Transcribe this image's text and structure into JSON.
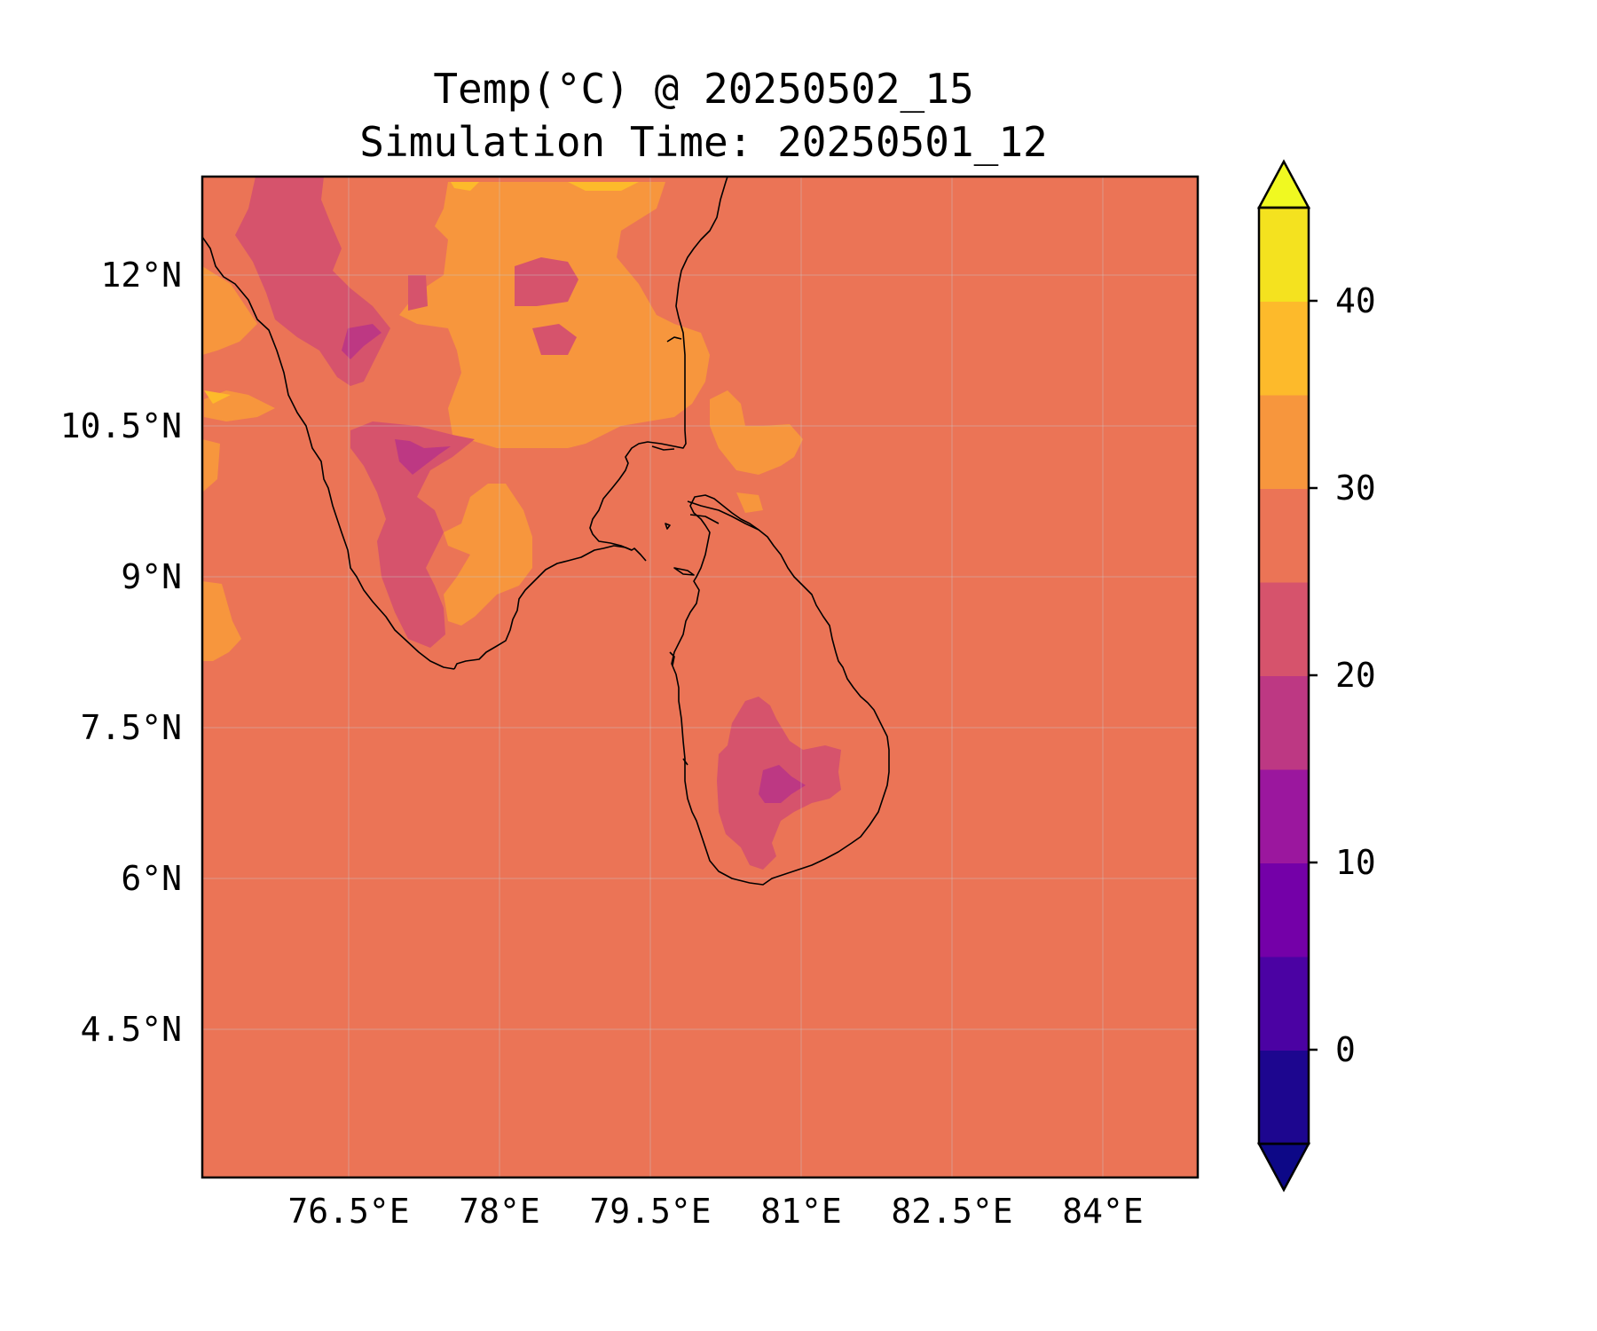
{
  "title": {
    "line1": "Temp(°C) @ 20250502_15",
    "line2": "Simulation Time: 20250501_12"
  },
  "map": {
    "lon_range": [
      75.0,
      84.9
    ],
    "lat_range": [
      3.0,
      12.95
    ],
    "x_ticks": [
      "76.5°E",
      "78°E",
      "79.5°E",
      "81°E",
      "82.5°E",
      "84°E"
    ],
    "y_ticks": [
      "12°N",
      "10.5°N",
      "9°N",
      "7.5°N",
      "6°N",
      "4.5°N"
    ],
    "background_temperature_band": "25-30",
    "regions": [
      "India",
      "Sri Lanka"
    ]
  },
  "colorbar": {
    "colormap": "plasma",
    "ticks": [
      "40",
      "30",
      "20",
      "10",
      "0"
    ],
    "levels": [
      -5,
      0,
      5,
      10,
      15,
      20,
      25,
      30,
      35,
      40,
      45
    ],
    "extend": "both",
    "colors": [
      "#1d068f",
      "#4b02a3",
      "#7400a8",
      "#9b179e",
      "#bd3883",
      "#d6536c",
      "#eb7456",
      "#f7963d",
      "#fdba2b",
      "#f4e21f"
    ],
    "under_color": "#0d0887",
    "over_color": "#f0f921"
  }
}
